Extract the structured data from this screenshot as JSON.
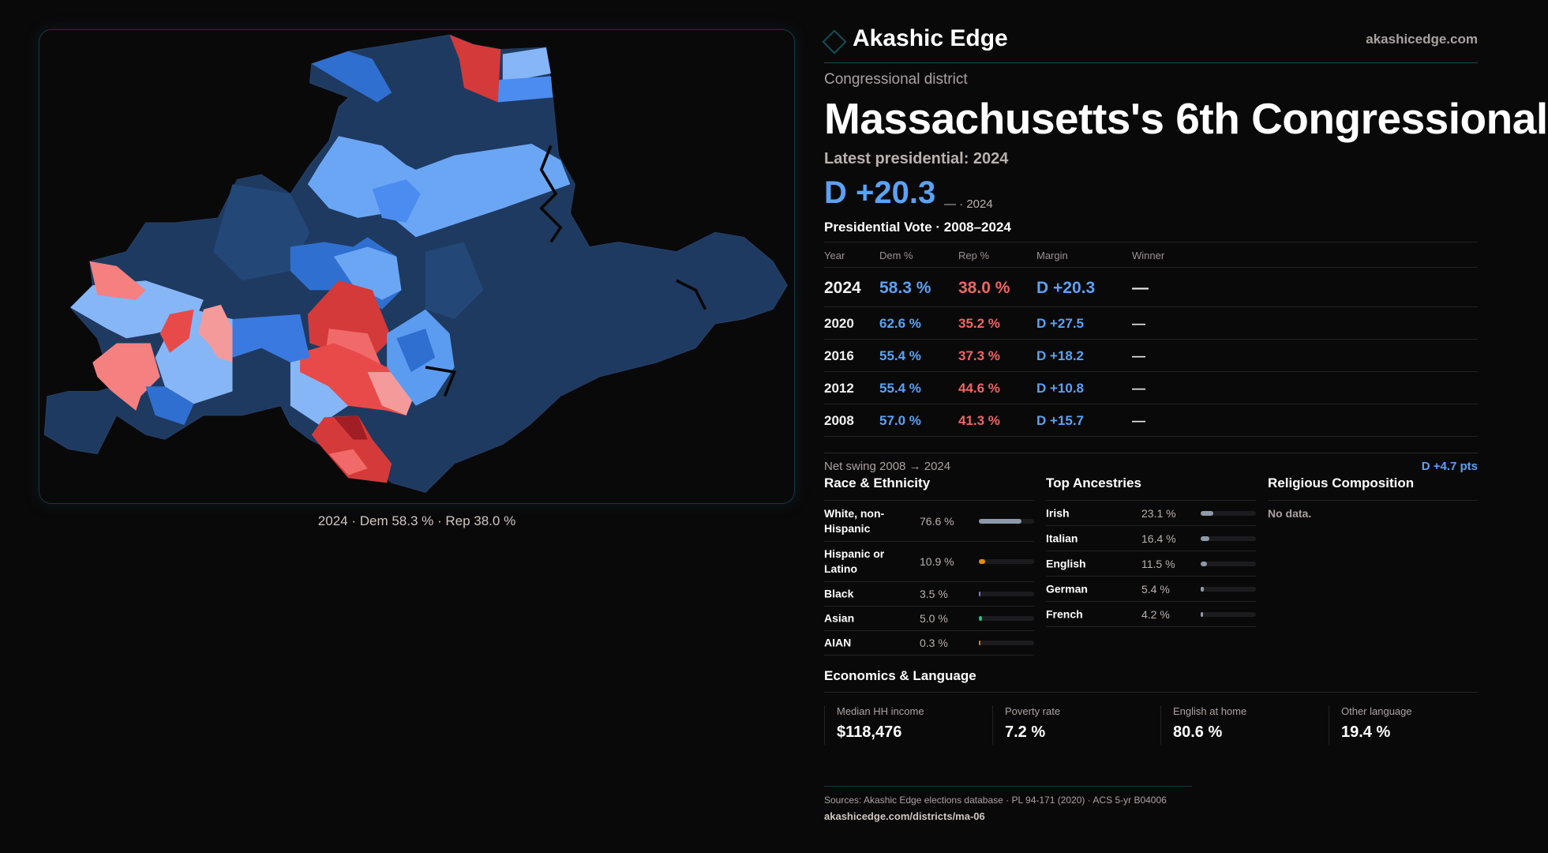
{
  "brand": {
    "name": "Akashic Edge",
    "site": "akashicedge.com"
  },
  "kicker": "Congressional district",
  "title": "Massachusetts's 6th Congressional",
  "latest": {
    "label": "Latest presidential: 2024",
    "margin": "D +20.3",
    "sub": "— · 2024"
  },
  "vote": {
    "title": "Presidential Vote · 2008–2024",
    "headers": [
      "Year",
      "Dem %",
      "Rep %",
      "Margin",
      "Winner"
    ],
    "rows": [
      [
        "2024",
        "58.3 %",
        "38.0 %",
        "D +20.3",
        "—"
      ],
      [
        "2020",
        "62.6 %",
        "35.2 %",
        "D +27.5",
        "—"
      ],
      [
        "2016",
        "55.4 %",
        "37.3 %",
        "D +18.2",
        "—"
      ],
      [
        "2012",
        "55.4 %",
        "44.6 %",
        "D +10.8",
        "—"
      ],
      [
        "2008",
        "57.0 %",
        "41.3 %",
        "D +15.7",
        "—"
      ]
    ],
    "swing_label": "Net swing 2008 → 2024",
    "swing_value": "D +4.7 pts"
  },
  "race": {
    "title": "Race & Ethnicity",
    "rows": [
      {
        "label": "White, non-Hispanic",
        "pct": "76.6 %",
        "value": 76.6,
        "color": "#8e9aab"
      },
      {
        "label": "Hispanic or Latino",
        "pct": "10.9 %",
        "value": 10.9,
        "color": "#e0900f"
      },
      {
        "label": "Black",
        "pct": "3.5 %",
        "value": 3.5,
        "color": "#8a6de0"
      },
      {
        "label": "Asian",
        "pct": "5.0 %",
        "value": 5.0,
        "color": "#22c07a"
      },
      {
        "label": "AIAN",
        "pct": "0.3 %",
        "value": 0.3,
        "color": "#e07a1a"
      }
    ]
  },
  "ancestry": {
    "title": "Top Ancestries",
    "rows": [
      {
        "label": "Irish",
        "pct": "23.1 %",
        "value": 23.1,
        "color": "#8e9aab"
      },
      {
        "label": "Italian",
        "pct": "16.4 %",
        "value": 16.4,
        "color": "#8e9aab"
      },
      {
        "label": "English",
        "pct": "11.5 %",
        "value": 11.5,
        "color": "#8e9aab"
      },
      {
        "label": "German",
        "pct": "5.4 %",
        "value": 5.4,
        "color": "#8e9aab"
      },
      {
        "label": "French",
        "pct": "4.2 %",
        "value": 4.2,
        "color": "#8e9aab"
      }
    ]
  },
  "religion": {
    "title": "Religious Composition",
    "empty": "No data."
  },
  "econ": {
    "title": "Economics & Language",
    "stats": [
      {
        "label": "Median HH income",
        "value": "$118,476"
      },
      {
        "label": "Poverty rate",
        "value": "7.2 %"
      },
      {
        "label": "English at home",
        "value": "80.6 %"
      },
      {
        "label": "Other language",
        "value": "19.4 %"
      }
    ]
  },
  "map": {
    "caption": "2024 · Dem 58.3 % · Rep 38.0 %",
    "colors": {
      "safe_d": "#1f3a60",
      "likely_d": "#2f6fd0",
      "lean_d": "#5b9cf0",
      "tilt_d": "#86b6f5",
      "tilt_r": "#f59a9a",
      "lean_r": "#f06a6a",
      "likely_r": "#d43a3a",
      "safe_r": "#a01e24"
    }
  },
  "footer": {
    "sources": "Sources: Akashic Edge elections database · PL 94-171 (2020) · ACS 5-yr B04006",
    "url": "akashicedge.com/districts/ma-06"
  }
}
